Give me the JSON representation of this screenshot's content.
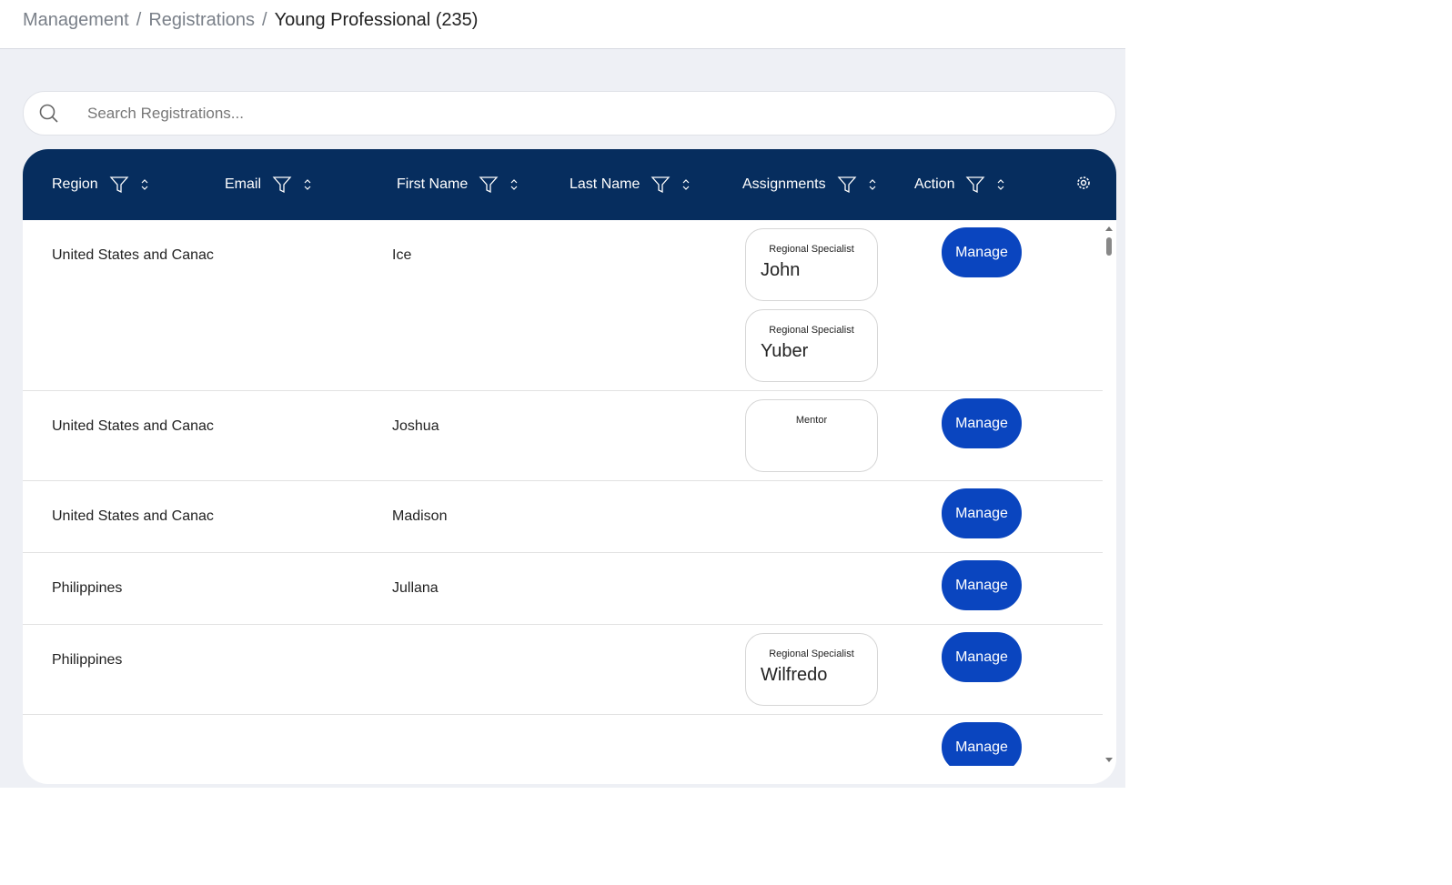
{
  "breadcrumb": {
    "items": [
      "Management",
      "Registrations",
      "Young Professional (235)"
    ],
    "separator": "/"
  },
  "search": {
    "placeholder": "Search Registrations..."
  },
  "table": {
    "columns": [
      "Region",
      "Email",
      "First Name",
      "Last Name",
      "Assignments",
      "Action"
    ],
    "rows": [
      {
        "region": "United States and Canac",
        "first_name": "Ice",
        "assignments": [
          {
            "role": "Regional Specialist",
            "name": "John"
          },
          {
            "role": "Regional Specialist",
            "name": "Yuber"
          }
        ],
        "action": "Manage"
      },
      {
        "region": "United States and Canac",
        "first_name": "Joshua",
        "assignments": [
          {
            "role": "Mentor"
          }
        ],
        "action": "Manage"
      },
      {
        "region": "United States and Canac",
        "first_name": "Madison",
        "action": "Manage"
      },
      {
        "region": "Philippines",
        "first_name": "Jullana",
        "action": "Manage"
      },
      {
        "region": "Philippines",
        "assignments": [
          {
            "role": "Regional Specialist",
            "name": "Wilfredo"
          }
        ],
        "action": "Manage"
      },
      {
        "action": "Manage"
      }
    ]
  }
}
